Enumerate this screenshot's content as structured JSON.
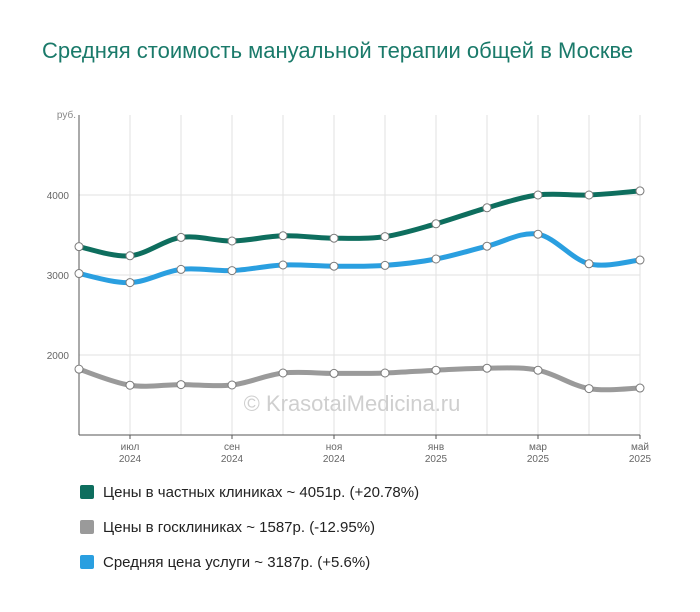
{
  "title": "Средняя стоимость мануальной терапии общей в Москве",
  "watermark": "© KrasotaiMedicina.ru",
  "chart_data": {
    "type": "line",
    "y_unit": "руб.",
    "yticks": [
      2000,
      3000,
      4000
    ],
    "ylim": [
      1000,
      5000
    ],
    "grid": true,
    "x": [
      "2024-06",
      "2024-07",
      "2024-08",
      "2024-09",
      "2024-10",
      "2024-11",
      "2024-12",
      "2025-01",
      "2025-02",
      "2025-03",
      "2025-04",
      "2025-05"
    ],
    "xtick_labels": [
      {
        "month": "июл",
        "year": "2024"
      },
      {
        "month": "сен",
        "year": "2024"
      },
      {
        "month": "ноя",
        "year": "2024"
      },
      {
        "month": "янв",
        "year": "2025"
      },
      {
        "month": "мар",
        "year": "2025"
      },
      {
        "month": "май",
        "year": "2025"
      }
    ],
    "series": [
      {
        "name": "Цены в частных клиниках ~ 4051р. (+20.78%)",
        "color": "#0e6e5e",
        "values": [
          3354,
          3240,
          3470,
          3425,
          3490,
          3460,
          3480,
          3640,
          3840,
          4000,
          4000,
          4051
        ]
      },
      {
        "name": "Цены в госклиниках ~ 1587р. (-12.95%)",
        "color": "#9a9a9a",
        "values": [
          1823,
          1622,
          1630,
          1625,
          1775,
          1770,
          1775,
          1810,
          1835,
          1810,
          1580,
          1587
        ]
      },
      {
        "name": "Средняя цена услуги ~ 3187р. (+5.6%)",
        "color": "#2a9fe0",
        "values": [
          3018,
          2905,
          3070,
          3055,
          3125,
          3110,
          3120,
          3200,
          3360,
          3510,
          3140,
          3187
        ]
      }
    ],
    "legend_position": "bottom"
  }
}
